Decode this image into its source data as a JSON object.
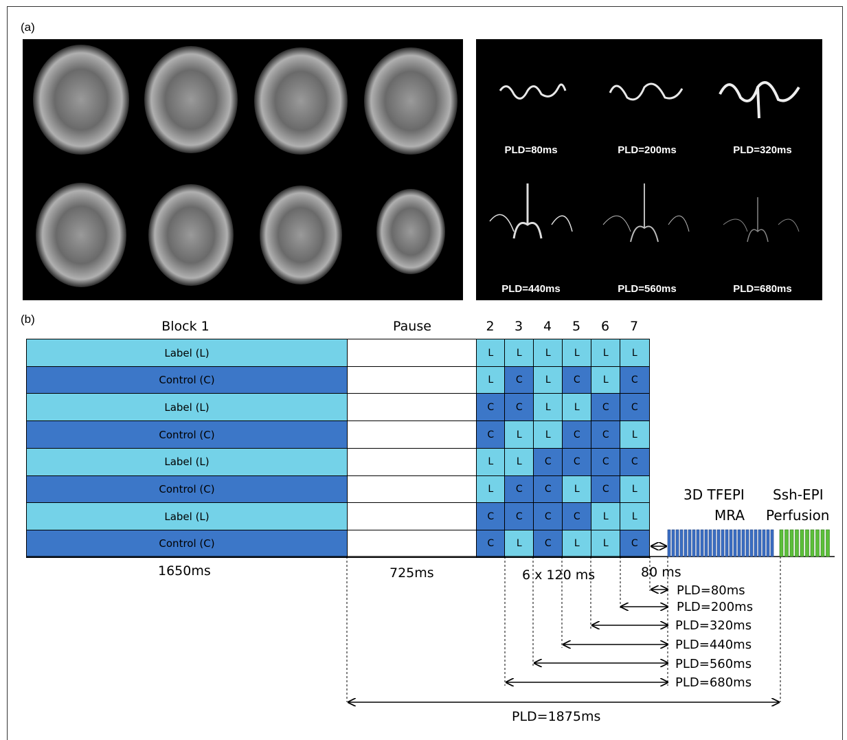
{
  "panel_a": {
    "label": "(a)",
    "pld_captions": [
      "PLD=80ms",
      "PLD=200ms",
      "PLD=320ms",
      "PLD=440ms",
      "PLD=560ms",
      "PLD=680ms"
    ]
  },
  "panel_b": {
    "label": "(b)",
    "block1_header": "Block 1",
    "pause_header": "Pause",
    "sub_block_numbers": [
      "2",
      "3",
      "4",
      "5",
      "6",
      "7"
    ],
    "rows": [
      {
        "label": "Label (L)",
        "type": "L",
        "cells": [
          "L",
          "L",
          "L",
          "L",
          "L",
          "L"
        ]
      },
      {
        "label": "Control (C)",
        "type": "C",
        "cells": [
          "L",
          "C",
          "L",
          "C",
          "L",
          "C"
        ]
      },
      {
        "label": "Label (L)",
        "type": "L",
        "cells": [
          "C",
          "C",
          "L",
          "L",
          "C",
          "C"
        ]
      },
      {
        "label": "Control (C)",
        "type": "C",
        "cells": [
          "C",
          "L",
          "L",
          "C",
          "C",
          "L"
        ]
      },
      {
        "label": "Label (L)",
        "type": "L",
        "cells": [
          "L",
          "L",
          "C",
          "C",
          "C",
          "C"
        ]
      },
      {
        "label": "Control (C)",
        "type": "C",
        "cells": [
          "L",
          "C",
          "C",
          "L",
          "C",
          "L"
        ]
      },
      {
        "label": "Label (L)",
        "type": "L",
        "cells": [
          "C",
          "C",
          "C",
          "C",
          "L",
          "L"
        ]
      },
      {
        "label": "Control (C)",
        "type": "C",
        "cells": [
          "C",
          "L",
          "C",
          "L",
          "L",
          "C"
        ]
      }
    ],
    "readout_title_line1": "3D TFEPI",
    "readout_title_line2": "MRA",
    "perfusion_title_line1": "Ssh-EPI",
    "perfusion_title_line2": "Perfusion",
    "duration_block1": "1650ms",
    "duration_pause": "725ms",
    "duration_subblocks": "6 x 120 ms",
    "duration_gap": "80 ms",
    "pld_labels": [
      "PLD=80ms",
      "PLD=200ms",
      "PLD=320ms",
      "PLD=440ms",
      "PLD=560ms",
      "PLD=680ms"
    ],
    "pld_total": "PLD=1875ms",
    "colors": {
      "label": "#74d2e8",
      "control": "#3c77c8",
      "mra_readout": "#3b6fc4",
      "perfusion_readout": "#5cbf3a"
    }
  }
}
